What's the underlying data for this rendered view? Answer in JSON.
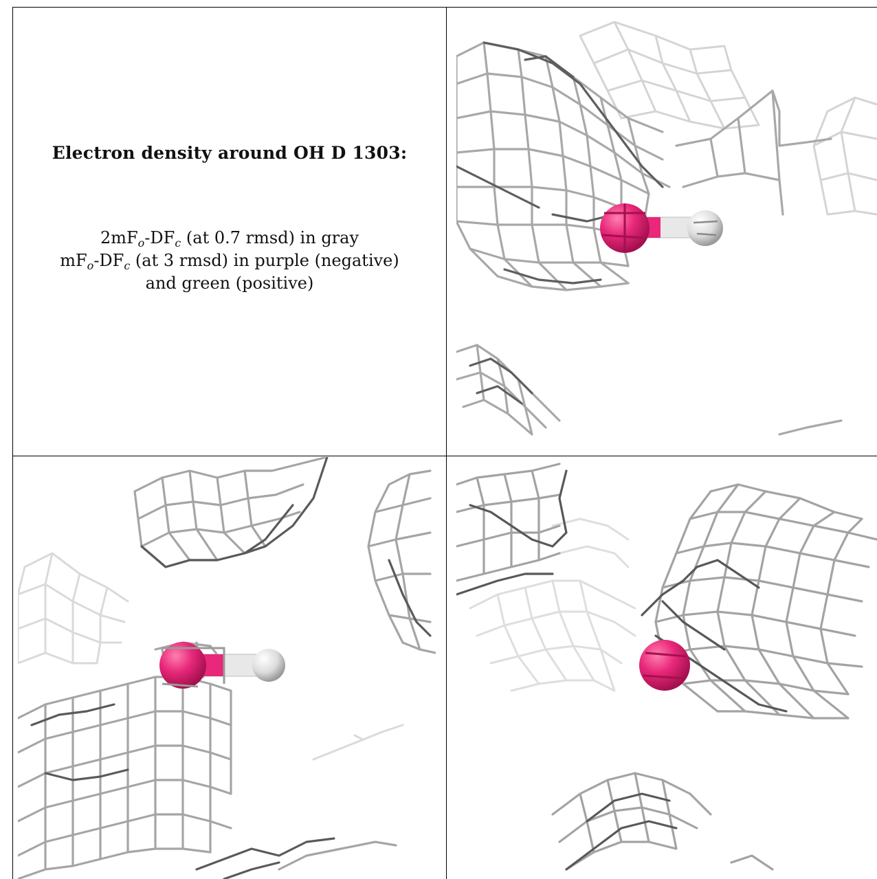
{
  "panel_info": {
    "title": "Electron density around OH D 1303:",
    "line1_prefix": "2mF",
    "line1_sub1": "o",
    "line1_mid": "-DF",
    "line1_sub2": "c",
    "line1_suffix": " (at 0.7 rmsd) in gray",
    "line2_prefix": "mF",
    "line2_sub1": "o",
    "line2_mid": "-DF",
    "line2_sub2": "c",
    "line2_suffix": " (at 3 rmsd) in purple (negative)",
    "line3": "and green (positive)"
  },
  "colors": {
    "mesh_gray": "#9a9a9a",
    "mesh_dark": "#555555",
    "oxygen": "#e8287a",
    "hydrogen": "#e6e6e6"
  },
  "views": [
    {
      "name": "view-top-right",
      "atoms": [
        "oxygen",
        "hydrogen"
      ]
    },
    {
      "name": "view-bottom-left",
      "atoms": [
        "oxygen",
        "hydrogen"
      ]
    },
    {
      "name": "view-bottom-right",
      "atoms": [
        "oxygen"
      ]
    }
  ]
}
